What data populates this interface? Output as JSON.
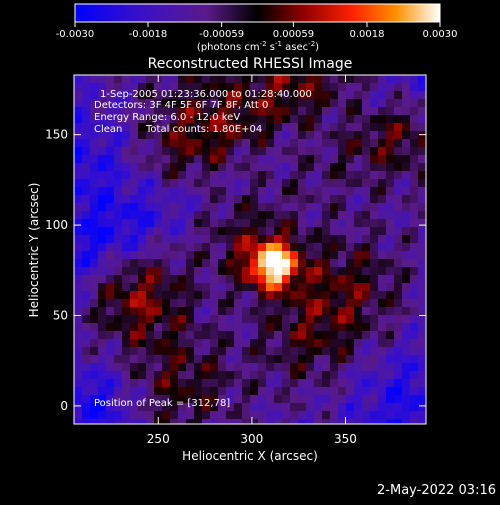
{
  "chart_data": {
    "type": "heatmap",
    "title": "Reconstructed RHESSI Image",
    "xlabel": "Heliocentric X (arcsec)",
    "ylabel": "Heliocentric Y (arcsec)",
    "xlim": [
      205,
      393
    ],
    "ylim": [
      -10,
      183
    ],
    "x_ticks": [
      250,
      300,
      350
    ],
    "y_ticks": [
      0,
      50,
      100,
      150
    ],
    "colorbar": {
      "range": [
        -0.003,
        0.003
      ],
      "tick_values": [
        -0.003,
        -0.0018,
        -0.00059,
        0.00059,
        0.0018,
        0.003
      ],
      "tick_labels": [
        "-0.0030",
        "-0.0018",
        "-0.00059",
        "0.00059",
        "0.0018",
        "0.0030"
      ],
      "units_text": "(photons cm",
      "units_exp1": "-2",
      "units_mid": " s",
      "units_exp2": "-1",
      "units_tail": " asec",
      "units_exp3": "-2",
      "units_close": ")",
      "colors": [
        "#0000ff",
        "#5a1a8a",
        "#000000",
        "#8a0000",
        "#ff3000",
        "#ffa000",
        "#ffffff"
      ]
    },
    "peak": [
      312,
      78
    ],
    "annotations": {
      "time_range": "1-Sep-2005 01:23:36.000 to 01:28:40.000",
      "detectors": "Detectors: 3F 4F 5F 6F 7F 8F, Att 0",
      "energy_range": "Energy Range: 6.0 - 12.0 keV",
      "method": "Clean",
      "total_counts": "Total counts: 1.80E+04",
      "peak_label": "Position of Peak = [312,78]"
    }
  },
  "footer": {
    "timestamp": "2-May-2022 03:16"
  }
}
